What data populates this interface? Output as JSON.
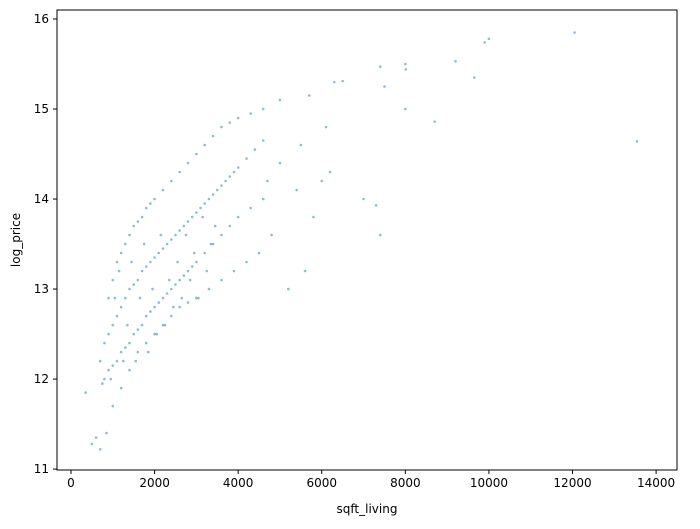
{
  "chart_data": {
    "type": "scatter",
    "x_label": "sqft_living",
    "y_label": "log_price",
    "color": "#1f77b4",
    "x": [
      12050,
      13540,
      10000,
      9900,
      9200,
      9650,
      8000,
      8010,
      7400,
      6500,
      6300,
      8700,
      8000,
      7500,
      7400,
      7300,
      7000,
      6200,
      5700,
      6100,
      5000,
      5500,
      4700,
      350,
      500,
      700,
      850,
      600,
      800,
      900,
      1000,
      1100,
      1200,
      1300,
      1400,
      1500,
      1600,
      1700,
      1800,
      1900,
      2000,
      2100,
      2200,
      2300,
      2400,
      2500,
      2600,
      2700,
      2800,
      2900,
      3000,
      3100,
      3200,
      3300,
      3400,
      3500,
      3600,
      3700,
      3800,
      3900,
      4000,
      4200,
      4400,
      4600,
      800,
      900,
      1000,
      1100,
      1200,
      1300,
      1400,
      1500,
      1600,
      1700,
      1800,
      1900,
      2000,
      2100,
      2200,
      2300,
      2400,
      2500,
      2600,
      2700,
      2800,
      2900,
      3000,
      3200,
      3400,
      3600,
      3800,
      4000,
      4300,
      4600,
      900,
      1000,
      1100,
      1200,
      1300,
      1400,
      1500,
      1600,
      1700,
      1800,
      1900,
      2000,
      2200,
      2400,
      2600,
      2800,
      3000,
      3200,
      3400,
      3600,
      3800,
      4000,
      4300,
      4600,
      5000,
      5400,
      5800,
      1000,
      1200,
      1400,
      1600,
      1800,
      2000,
      2200,
      2400,
      2600,
      2800,
      3000,
      3300,
      3600,
      3900,
      4200,
      4500,
      4800,
      5200,
      5600,
      6000,
      700,
      750,
      950,
      1050,
      1150,
      1250,
      1350,
      1450,
      1550,
      1650,
      1750,
      1850,
      1950,
      2050,
      2150,
      2250,
      2350,
      2450,
      2550,
      2650,
      2750,
      2850,
      2950,
      3050,
      3150,
      3250,
      3350,
      3450
    ],
    "y": [
      15.85,
      14.64,
      15.78,
      15.74,
      15.53,
      15.35,
      15.5,
      15.44,
      15.47,
      15.31,
      15.3,
      14.86,
      15.0,
      15.25,
      13.6,
      13.93,
      14.0,
      14.3,
      15.15,
      14.8,
      15.1,
      14.6,
      14.2,
      11.85,
      11.28,
      11.22,
      11.4,
      11.35,
      12.4,
      12.5,
      12.6,
      12.7,
      12.8,
      12.9,
      13.0,
      13.05,
      13.1,
      13.2,
      13.25,
      13.3,
      13.35,
      13.4,
      13.45,
      13.5,
      13.55,
      13.6,
      13.65,
      13.7,
      13.75,
      13.8,
      13.85,
      13.9,
      13.95,
      14.0,
      14.05,
      14.1,
      14.15,
      14.2,
      14.25,
      14.3,
      14.35,
      14.45,
      14.55,
      14.65,
      12.0,
      12.1,
      12.15,
      12.2,
      12.3,
      12.35,
      12.4,
      12.5,
      12.55,
      12.6,
      12.7,
      12.75,
      12.8,
      12.85,
      12.9,
      12.95,
      13.0,
      13.05,
      13.1,
      13.15,
      13.2,
      13.25,
      13.3,
      13.4,
      13.5,
      13.6,
      13.7,
      13.8,
      13.9,
      14.0,
      12.9,
      13.1,
      13.3,
      13.4,
      13.5,
      13.6,
      13.7,
      13.75,
      13.8,
      13.9,
      13.95,
      14.0,
      14.1,
      14.2,
      14.3,
      14.4,
      14.5,
      14.6,
      14.7,
      14.8,
      14.85,
      14.9,
      14.95,
      15.0,
      14.4,
      14.1,
      13.8,
      11.7,
      11.9,
      12.1,
      12.3,
      12.4,
      12.5,
      12.6,
      12.7,
      12.8,
      12.85,
      12.9,
      13.0,
      13.1,
      13.2,
      13.3,
      13.4,
      13.6,
      13.0,
      13.2,
      14.2,
      12.2,
      11.95,
      12.0,
      12.9,
      13.2,
      12.2,
      12.6,
      13.3,
      12.2,
      12.9,
      13.5,
      12.3,
      13.0,
      12.5,
      13.6,
      12.6,
      13.1,
      12.8,
      13.3,
      12.9,
      13.6,
      13.1,
      13.4,
      12.9,
      13.8,
      13.2,
      13.5,
      13.7
    ],
    "xlim": [
      -335,
      14500
    ],
    "ylim": [
      10.99,
      16.1
    ],
    "xticks": [
      0,
      2000,
      4000,
      6000,
      8000,
      10000,
      12000,
      14000
    ],
    "yticks": [
      11,
      12,
      13,
      14,
      15,
      16
    ]
  }
}
